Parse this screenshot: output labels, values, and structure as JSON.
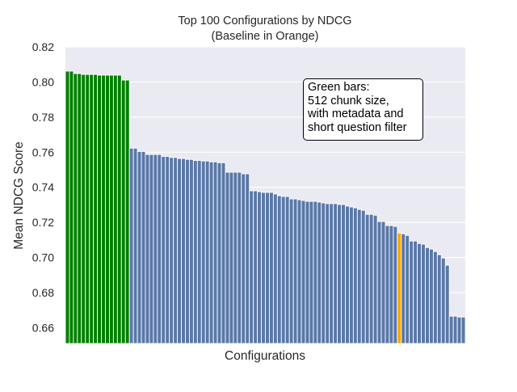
{
  "chart_data": {
    "type": "bar",
    "title": "Top 100 Configurations by NDCG",
    "subtitle": "(Baseline in Orange)",
    "xlabel": "Configurations",
    "ylabel": "Mean NDCG Score",
    "ylim": [
      0.651,
      0.82
    ],
    "yticks": [
      "0.66",
      "0.68",
      "0.70",
      "0.72",
      "0.74",
      "0.76",
      "0.78",
      "0.80",
      "0.82"
    ],
    "grid": true,
    "colors": {
      "highlight": "#008000",
      "default": "#5a78a8",
      "baseline": "#ffa500",
      "background": "#eaeaf2"
    },
    "baseline_index": 84,
    "highlight_count": 16,
    "annotation": [
      "Green bars:",
      "512 chunk size,",
      "with metadata and",
      "short question filter"
    ],
    "values": [
      0.8062,
      0.8062,
      0.8048,
      0.8048,
      0.8043,
      0.8043,
      0.8043,
      0.8043,
      0.8039,
      0.8039,
      0.8039,
      0.8039,
      0.8039,
      0.8039,
      0.8011,
      0.8011,
      0.7623,
      0.7623,
      0.7604,
      0.7604,
      0.7587,
      0.7587,
      0.7587,
      0.7587,
      0.7576,
      0.7576,
      0.757,
      0.757,
      0.7564,
      0.7564,
      0.7559,
      0.7559,
      0.7553,
      0.7553,
      0.755,
      0.755,
      0.7545,
      0.7545,
      0.754,
      0.754,
      0.7486,
      0.7486,
      0.7486,
      0.7486,
      0.7477,
      0.7477,
      0.738,
      0.738,
      0.7375,
      0.7371,
      0.7371,
      0.7371,
      0.7362,
      0.7352,
      0.7348,
      0.7348,
      0.7334,
      0.7334,
      0.7329,
      0.7325,
      0.732,
      0.732,
      0.732,
      0.7316,
      0.7311,
      0.7307,
      0.7307,
      0.7307,
      0.7302,
      0.7302,
      0.7293,
      0.7288,
      0.7283,
      0.7274,
      0.7269,
      0.7246,
      0.7246,
      0.7241,
      0.7205,
      0.7205,
      0.7182,
      0.7182,
      0.7177,
      0.714,
      0.7135,
      0.7126,
      0.7094,
      0.7094,
      0.708,
      0.7076,
      0.7057,
      0.7048,
      0.7034,
      0.7016,
      0.6997,
      0.6956,
      0.6666,
      0.6666,
      0.6661,
      0.6661
    ]
  }
}
